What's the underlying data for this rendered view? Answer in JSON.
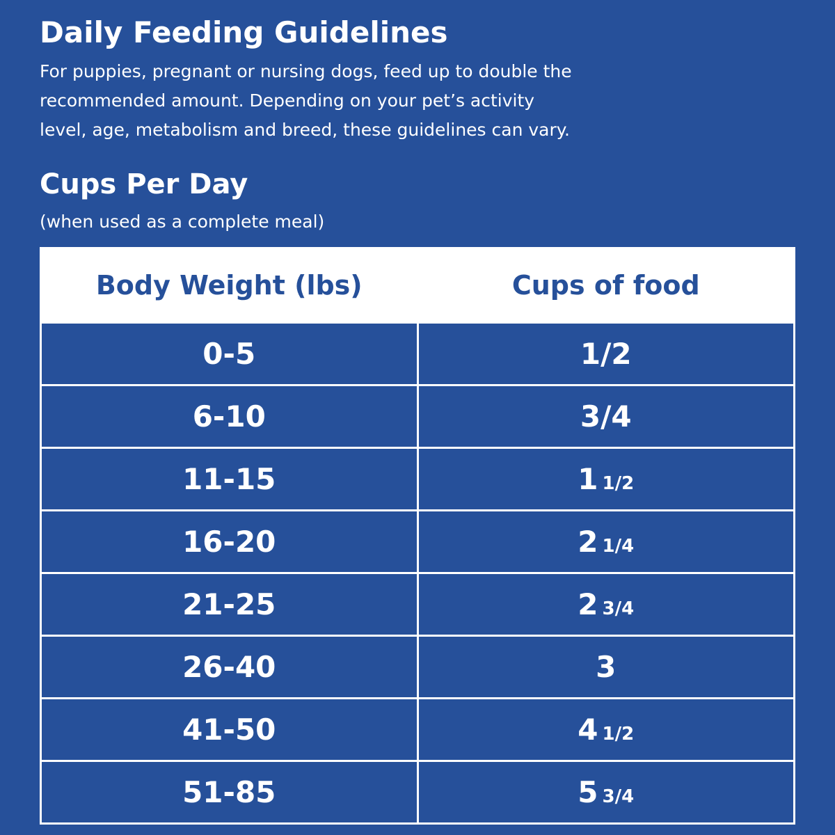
{
  "header": {
    "title": "Daily Feeding Guidelines",
    "description_lines": [
      "For puppies, pregnant or nursing dogs, feed up to double the",
      "recommended amount. Depending on your pet’s activity",
      "level, age, metabolism and breed, these guidelines can vary."
    ]
  },
  "section": {
    "title": "Cups Per Day",
    "note": "(when used as a complete meal)"
  },
  "table": {
    "columns": [
      "Body Weight (lbs)",
      "Cups of food"
    ],
    "rows": [
      [
        "0-5",
        {
          "whole": "1/2"
        }
      ],
      [
        "6-10",
        {
          "whole": "3/4"
        }
      ],
      [
        "11-15",
        {
          "whole": "1",
          "fraction": "1/2"
        }
      ],
      [
        "16-20",
        {
          "whole": "2",
          "fraction": "1/4"
        }
      ],
      [
        "21-25",
        {
          "whole": "2",
          "fraction": "3/4"
        }
      ],
      [
        "26-40",
        {
          "whole": "3"
        }
      ],
      [
        "41-50",
        {
          "whole": "4",
          "fraction": "1/2"
        }
      ],
      [
        "51-85",
        {
          "whole": "5",
          "fraction": "3/4"
        }
      ]
    ]
  }
}
